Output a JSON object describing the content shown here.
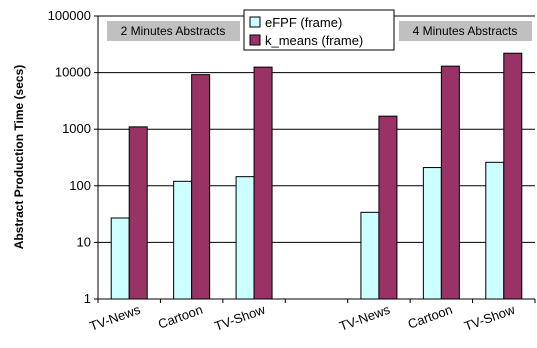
{
  "chart_data": {
    "type": "bar",
    "ylabel": "Abstract Production Time (secs)",
    "yscale": "log",
    "ylim": [
      1,
      100000
    ],
    "y_ticks": [
      1,
      10,
      100,
      1000,
      10000,
      100000
    ],
    "y_tick_labels": [
      "1",
      "10",
      "100",
      "1000",
      "10000",
      "100000"
    ],
    "grid": "horizontal",
    "legend_position": "top-center",
    "groups": [
      {
        "name": "2 Minutes Abstracts",
        "categories": [
          "TV-News",
          "Cartoon",
          "TV-Show"
        ]
      },
      {
        "name": "4 Minutes Abstracts",
        "categories": [
          "TV-News",
          "Cartoon",
          "TV-Show"
        ]
      }
    ],
    "categories": [
      "TV-News",
      "Cartoon",
      "TV-Show",
      "TV-News",
      "Cartoon",
      "TV-Show"
    ],
    "series": [
      {
        "name": "eFPF (frame)",
        "color": "#ccffff",
        "values": [
          27,
          120,
          145,
          34,
          210,
          260
        ]
      },
      {
        "name": "k_means (frame)",
        "color": "#993366",
        "values": [
          1100,
          9200,
          12500,
          1700,
          13000,
          22000
        ]
      }
    ]
  }
}
